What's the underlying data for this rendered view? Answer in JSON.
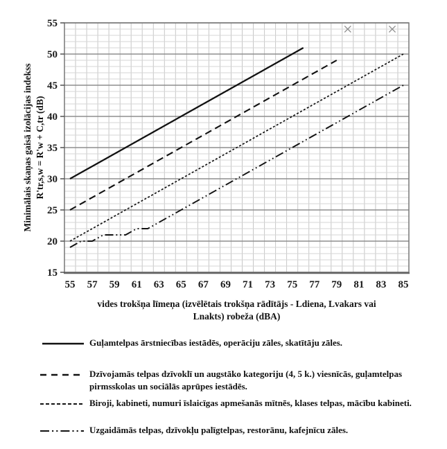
{
  "chart_data": {
    "type": "line",
    "title": "",
    "x_range": [
      55,
      85
    ],
    "y_range": [
      15,
      55
    ],
    "x_ticks": [
      55,
      57,
      59,
      61,
      63,
      65,
      67,
      69,
      71,
      73,
      75,
      77,
      79,
      81,
      83,
      85
    ],
    "y_ticks": [
      15,
      20,
      25,
      30,
      35,
      40,
      45,
      50,
      55
    ],
    "xlabel_line1": "vides trokšņa līmeņa (izvēlētais trokšņa rādītājs - Ldiena, Lvakars vai",
    "xlabel_line2": "Lnakts) robeža  (dBA)",
    "ylabel_line1": "Minimālais skaņas gaisā izolācijas indekss",
    "ylabel_line2": "R'tr,s,w = R'w + C,tr  (dB)",
    "grid": "on",
    "legend_position": "below",
    "line_color": "#111111",
    "series": [
      {
        "name": "Guļamtelpas ārstniecības iestādēs, operāciju zāles, skatītāju zāles.",
        "style": "solid",
        "points": [
          [
            55,
            30
          ],
          [
            76,
            51
          ]
        ]
      },
      {
        "name": "Dzīvojamās telpas dzīvoklī un augstāko kategoriju (4, 5 k.) viesnīcās, guļamtelpas pirmsskolas un sociālās aprūpes iestādēs.",
        "style": "long-dash",
        "points": [
          [
            55,
            25
          ],
          [
            79,
            49
          ]
        ]
      },
      {
        "name": "Biroji, kabineti, numuri īslaicīgas apmešanās mītnēs, klases telpas, mācību kabineti.",
        "style": "short-dash",
        "points": [
          [
            55,
            20
          ],
          [
            85,
            50
          ]
        ]
      },
      {
        "name": "Uzgaidāmās telpas, dzīvokļu palīgtelpas, restorānu, kafejnīcu zāles.",
        "style": "dash-dot-dot",
        "points": [
          [
            55,
            19
          ],
          [
            56,
            20
          ],
          [
            57,
            20
          ],
          [
            58,
            21
          ],
          [
            60,
            21
          ],
          [
            61,
            22
          ],
          [
            62,
            22
          ],
          [
            85,
            45
          ]
        ]
      }
    ],
    "markers": {
      "symbol": "x",
      "color": "#8c8c8c",
      "points": [
        [
          80,
          54
        ],
        [
          84,
          54
        ]
      ]
    }
  }
}
